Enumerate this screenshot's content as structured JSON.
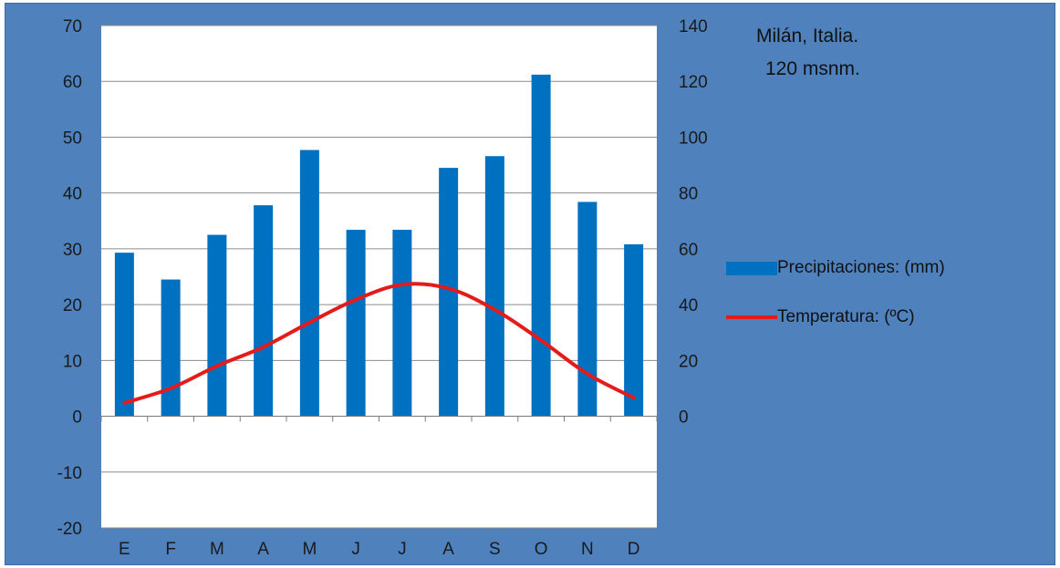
{
  "chart_data": {
    "type": "bar+line",
    "title": "",
    "annotations": [
      "Milán, Italia.",
      "120 msnm."
    ],
    "categories": [
      "E",
      "F",
      "M",
      "A",
      "M",
      "J",
      "J",
      "A",
      "S",
      "O",
      "N",
      "D"
    ],
    "left_axis": {
      "ylim": [
        -20,
        70
      ],
      "ticks": [
        -20,
        -10,
        0,
        10,
        20,
        30,
        40,
        50,
        60,
        70
      ]
    },
    "right_axis": {
      "ylim": [
        -40,
        140
      ],
      "ticks": [
        0,
        20,
        40,
        60,
        80,
        100,
        120,
        140
      ]
    },
    "series": [
      {
        "name": "Precipitaciones: (mm)",
        "type": "bar",
        "axis": "left",
        "color": "#0070c0",
        "values": [
          29.3,
          24.5,
          32.5,
          37.8,
          47.7,
          33.4,
          33.4,
          44.5,
          46.6,
          61.2,
          38.4,
          30.8
        ]
      },
      {
        "name": "Temperatura:  (ºC)",
        "type": "line",
        "axis": "left",
        "color": "#e31b1b",
        "values": [
          2.4,
          5.0,
          9.0,
          12.4,
          16.8,
          20.9,
          23.6,
          22.9,
          19.1,
          13.6,
          7.6,
          3.3
        ]
      }
    ],
    "legend_position": "right",
    "grid": true
  },
  "legend": {
    "precip_label": "Precipitaciones: (mm)",
    "temp_label": "Temperatura:  (ºC)"
  },
  "annotation": {
    "city": "Milán, Italia.",
    "altitude": "120 msnm."
  }
}
